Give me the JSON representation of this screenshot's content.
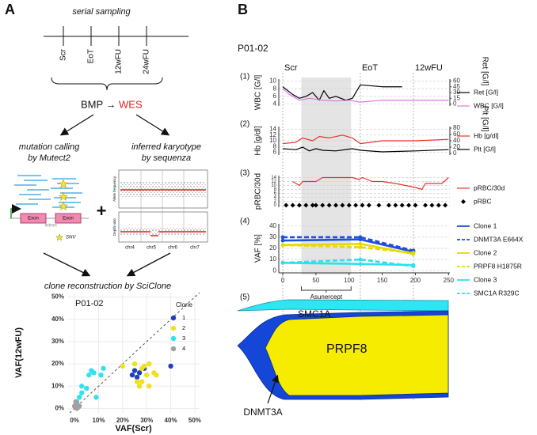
{
  "panel_a": {
    "label": "A",
    "serial_sampling": "serial sampling",
    "timepoints": [
      "Scr",
      "EoT",
      "12wFU",
      "24wFU"
    ],
    "bmp": "BMP →",
    "wes": "WES",
    "mutation_calling": "mutation calling",
    "by_mutect2": "by Mutect2",
    "inferred_karyotype": "inferred karyotype",
    "by_sequenza": "by sequenza",
    "exon": "Exon",
    "intron": "Intron",
    "snv": "SNV",
    "plus": "+",
    "allele_frequency": "Allele frequency",
    "depth_ratio": "Depth ratio",
    "chromosomes": [
      "chr4",
      "chr5",
      "chr6",
      "chr7"
    ],
    "clone_reconstruction": "clone reconstruction by SciClone"
  },
  "panel_b": {
    "label": "B",
    "patient": "P01-02",
    "events": [
      {
        "label": "Scr",
        "day": 0
      },
      {
        "label": "EoT",
        "day": 117
      },
      {
        "label": "12wFU",
        "day": 197
      }
    ],
    "treatment": {
      "label": "Asunercept",
      "start": 28,
      "end": 103
    }
  },
  "chart_data": [
    {
      "type": "scatter",
      "title": "P01-02",
      "x_label": "VAF(Scr)",
      "y_label": "VAF(12wFU)",
      "xlim": [
        -3,
        52
      ],
      "ylim": [
        -2,
        52
      ],
      "xticks": [
        {
          "value": 0,
          "label": "0%"
        },
        {
          "value": 10,
          "label": "10%"
        },
        {
          "value": 20,
          "label": "20%"
        },
        {
          "value": 30,
          "label": "30%"
        },
        {
          "value": 40,
          "label": "40%"
        },
        {
          "value": 50,
          "label": "50%"
        }
      ],
      "yticks": [
        {
          "value": 0,
          "label": "0%"
        },
        {
          "value": 10,
          "label": "10%"
        },
        {
          "value": 20,
          "label": "20%"
        },
        {
          "value": 30,
          "label": "30%"
        },
        {
          "value": 40,
          "label": "40%"
        },
        {
          "value": 50,
          "label": "50%"
        }
      ],
      "grid": true,
      "legend_title": "Clone",
      "series": [
        {
          "name": "1",
          "color": "#1f3fc0",
          "x": [
            24,
            25,
            26,
            27,
            29,
            40
          ],
          "values": [
            15,
            17,
            14,
            16,
            18,
            19
          ]
        },
        {
          "name": "2",
          "color": "#f0e020",
          "x": [
            20,
            25,
            26,
            27,
            28,
            28,
            29,
            30,
            31,
            31,
            33,
            34
          ],
          "values": [
            19,
            20,
            12,
            10,
            12,
            18,
            19,
            15,
            10,
            20,
            16,
            15
          ]
        },
        {
          "name": "3",
          "color": "#33e0f0",
          "x": [
            1,
            2,
            3,
            3,
            5,
            6,
            7,
            8,
            9,
            11,
            12
          ],
          "values": [
            3,
            5,
            7,
            10,
            9,
            15,
            17,
            16,
            5,
            15,
            18
          ]
        },
        {
          "name": "4",
          "color": "#a0a0a0",
          "x": [
            0,
            0.5,
            1,
            1,
            1.5,
            2
          ],
          "values": [
            1,
            3,
            2,
            0,
            0.5,
            1
          ]
        }
      ]
    },
    {
      "type": "line",
      "panel_label": "(1)",
      "y_label": "WBC [G/l]",
      "y2_label": "Ret [G/l]",
      "xlim": [
        -6,
        252
      ],
      "ylim": [
        3.5,
        10.5
      ],
      "yticks": [
        4,
        6,
        8,
        10
      ],
      "y2lim": [
        -5,
        65
      ],
      "y2ticks": [
        0,
        15,
        30,
        45,
        60
      ],
      "grid": true,
      "series": [
        {
          "name": "Ret [G/l]",
          "color": "#000000",
          "axis": "y2",
          "x": [
            0,
            15,
            25,
            35,
            45,
            55,
            62,
            70,
            80,
            95,
            105,
            117,
            150,
            180
          ],
          "values": [
            45,
            25,
            15,
            20,
            30,
            10,
            35,
            15,
            20,
            10,
            15,
            50,
            45,
            45
          ]
        },
        {
          "name": "WBC [G/l]",
          "color": "#dd77dd",
          "x": [
            0,
            10,
            25,
            40,
            60,
            80,
            100,
            117,
            150,
            200,
            250
          ],
          "values": [
            8,
            6.5,
            5,
            5.5,
            5,
            4.8,
            5,
            4.5,
            5,
            5,
            5
          ]
        }
      ]
    },
    {
      "type": "line",
      "panel_label": "(2)",
      "y_label": "Hb [g/dl]",
      "y2_label": "Plt [G/l]",
      "xlim": [
        -6,
        252
      ],
      "ylim": [
        5,
        15
      ],
      "yticks": [
        6,
        8,
        10,
        12,
        14
      ],
      "y2lim": [
        -5,
        85
      ],
      "y2ticks": [
        0,
        20,
        40,
        60,
        80
      ],
      "grid": true,
      "series": [
        {
          "name": "Hb [g/dl]",
          "color": "#e8322a",
          "x": [
            0,
            20,
            30,
            45,
            55,
            70,
            90,
            105,
            117,
            150,
            200,
            250
          ],
          "values": [
            9,
            9.5,
            11,
            10,
            11.5,
            11,
            12,
            11,
            9,
            10,
            10,
            10.5
          ]
        },
        {
          "name": "Plt [G/l]",
          "color": "#000000",
          "axis": "y2",
          "x": [
            0,
            20,
            30,
            40,
            50,
            60,
            80,
            105,
            117,
            150,
            200,
            250
          ],
          "values": [
            15,
            12,
            20,
            8,
            15,
            10,
            8,
            15,
            10,
            5,
            8,
            12
          ]
        }
      ]
    },
    {
      "type": "line",
      "panel_label": "(3)",
      "y_label": "pRBC/30d",
      "xlim": [
        -6,
        252
      ],
      "ylim": [
        -1,
        15
      ],
      "yticks": [
        0,
        2,
        4,
        6,
        8,
        10,
        12,
        14
      ],
      "grid": true,
      "series": [
        {
          "name": "pRBC/30d",
          "color": "#e8322a",
          "x": [
            15,
            25,
            30,
            50,
            60,
            75,
            90,
            105,
            115,
            120,
            135,
            150,
            170,
            185,
            200,
            210,
            215,
            230,
            240,
            250
          ],
          "values": [
            12,
            10,
            12,
            12,
            14,
            14,
            14,
            14,
            13,
            14,
            12,
            12,
            11,
            10,
            9,
            8,
            11,
            11,
            11,
            14
          ]
        },
        {
          "name": "pRBC",
          "color": "#000000",
          "marker": "diamond",
          "x": [
            5,
            15,
            25,
            35,
            45,
            50,
            60,
            70,
            80,
            90,
            100,
            110,
            120,
            130,
            145,
            160,
            170,
            180,
            190,
            200,
            215,
            225,
            235,
            245
          ],
          "values": [
            0,
            0,
            0,
            0,
            0,
            0,
            0,
            0,
            0,
            0,
            0,
            0,
            0,
            0,
            0,
            0,
            0,
            0,
            0,
            0,
            0,
            0,
            0,
            0
          ]
        }
      ]
    },
    {
      "type": "line",
      "panel_label": "(4)",
      "y_label": "VAF [%]",
      "xlim": [
        -6,
        252
      ],
      "ylim": [
        -2,
        42
      ],
      "yticks": [
        0,
        10,
        20,
        30,
        40
      ],
      "xticks": [
        0,
        50,
        100,
        150,
        200,
        250
      ],
      "grid": true,
      "series": [
        {
          "name": "Clone 1",
          "color": "#1e4fd6",
          "x": [
            0,
            117,
            197
          ],
          "values": [
            27,
            28,
            17
          ]
        },
        {
          "name": "DNMT3A E664X",
          "color": "#1e4fd6",
          "line_style": "dashed",
          "x": [
            0,
            117,
            197
          ],
          "values": [
            30,
            30,
            18
          ]
        },
        {
          "name": "Clone 2",
          "color": "#e8d800",
          "x": [
            0,
            117,
            197
          ],
          "values": [
            23,
            24,
            15
          ]
        },
        {
          "name": "PRPF8 H1875R",
          "color": "#e8d800",
          "line_style": "dashed",
          "x": [
            0,
            117,
            197
          ],
          "values": [
            23,
            21,
            16
          ]
        },
        {
          "name": "Clone 3",
          "color": "#2ee0ee",
          "x": [
            0,
            117,
            197
          ],
          "values": [
            7,
            6,
            5
          ]
        },
        {
          "name": "SMC1A R329C",
          "color": "#2ee0ee",
          "line_style": "dashed",
          "x": [
            0,
            117,
            197
          ],
          "values": [
            7,
            10,
            4
          ]
        }
      ]
    }
  ],
  "fish_plot": {
    "panel_label": "(5)",
    "smc1a": "SMC1A",
    "prpf8": "PRPF8",
    "dnmt3a": "DNMT3A"
  }
}
